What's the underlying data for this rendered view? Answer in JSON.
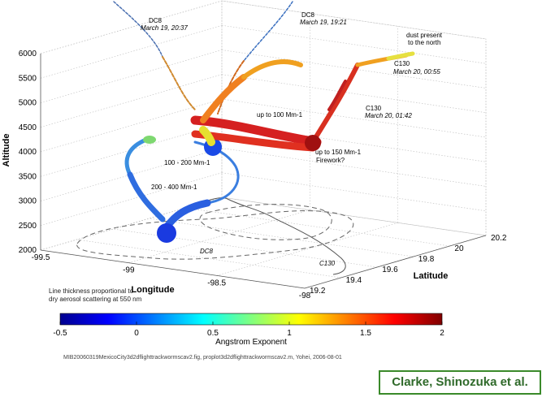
{
  "chart_data": {
    "type": "3d-flight-track",
    "z_axis": {
      "label": "Altitude",
      "ticks": [
        "6000",
        "5500",
        "5000",
        "4500",
        "4000",
        "3500",
        "3000",
        "2500",
        "2000"
      ],
      "range": [
        2000,
        6000
      ]
    },
    "x_axis": {
      "label": "Longitude",
      "ticks": [
        "-99.5",
        "-99",
        "-98.5",
        "-98"
      ],
      "range": [
        -99.5,
        -98
      ]
    },
    "y_axis": {
      "label": "Latitude",
      "ticks": [
        "19.2",
        "19.4",
        "19.6",
        "19.8",
        "20",
        "20.2"
      ],
      "range": [
        19.2,
        20.2
      ]
    },
    "grid": true,
    "colorbar": {
      "label": "Angstrom Exponent",
      "ticks": [
        "-0.5",
        "0",
        "0.5",
        "1",
        "1.5",
        "2"
      ],
      "range": [
        -0.5,
        2
      ],
      "colormap": "jet",
      "placement": "bottom"
    },
    "annotations": {
      "dc8_top_left": {
        "name": "DC8",
        "time": "March 19, 20:37"
      },
      "dc8_top_right": {
        "name": "DC8",
        "time": "March 19, 19:21"
      },
      "dust": {
        "line1": "dust present",
        "line2": "to the north"
      },
      "c130_first": {
        "name": "C130",
        "time": "March 20, 00:55"
      },
      "c130_second": {
        "name": "C130",
        "time": "March 20, 01:42"
      },
      "up100": "up to 100 Mm-1",
      "up150": "up to 150 Mm-1",
      "firework": "Firework?",
      "range100_200": "100 - 200 Mm-1",
      "range200_400": "200 - 400 Mm-1",
      "dc8_ground": "DC8",
      "c130_ground": "C130"
    },
    "thickness_note": {
      "line1": "Line thickness proportional to",
      "line2": "dry aerosol scattering at 550 nm"
    }
  },
  "footer": {
    "filename": "MIB20060319MexicoCity3d2dflighttrackwormscav2.fig, proplot3d2dflighttrackwormscav2.m, Yohei, 2006-08-01"
  },
  "credit": "Clarke, Shinozuka et al."
}
